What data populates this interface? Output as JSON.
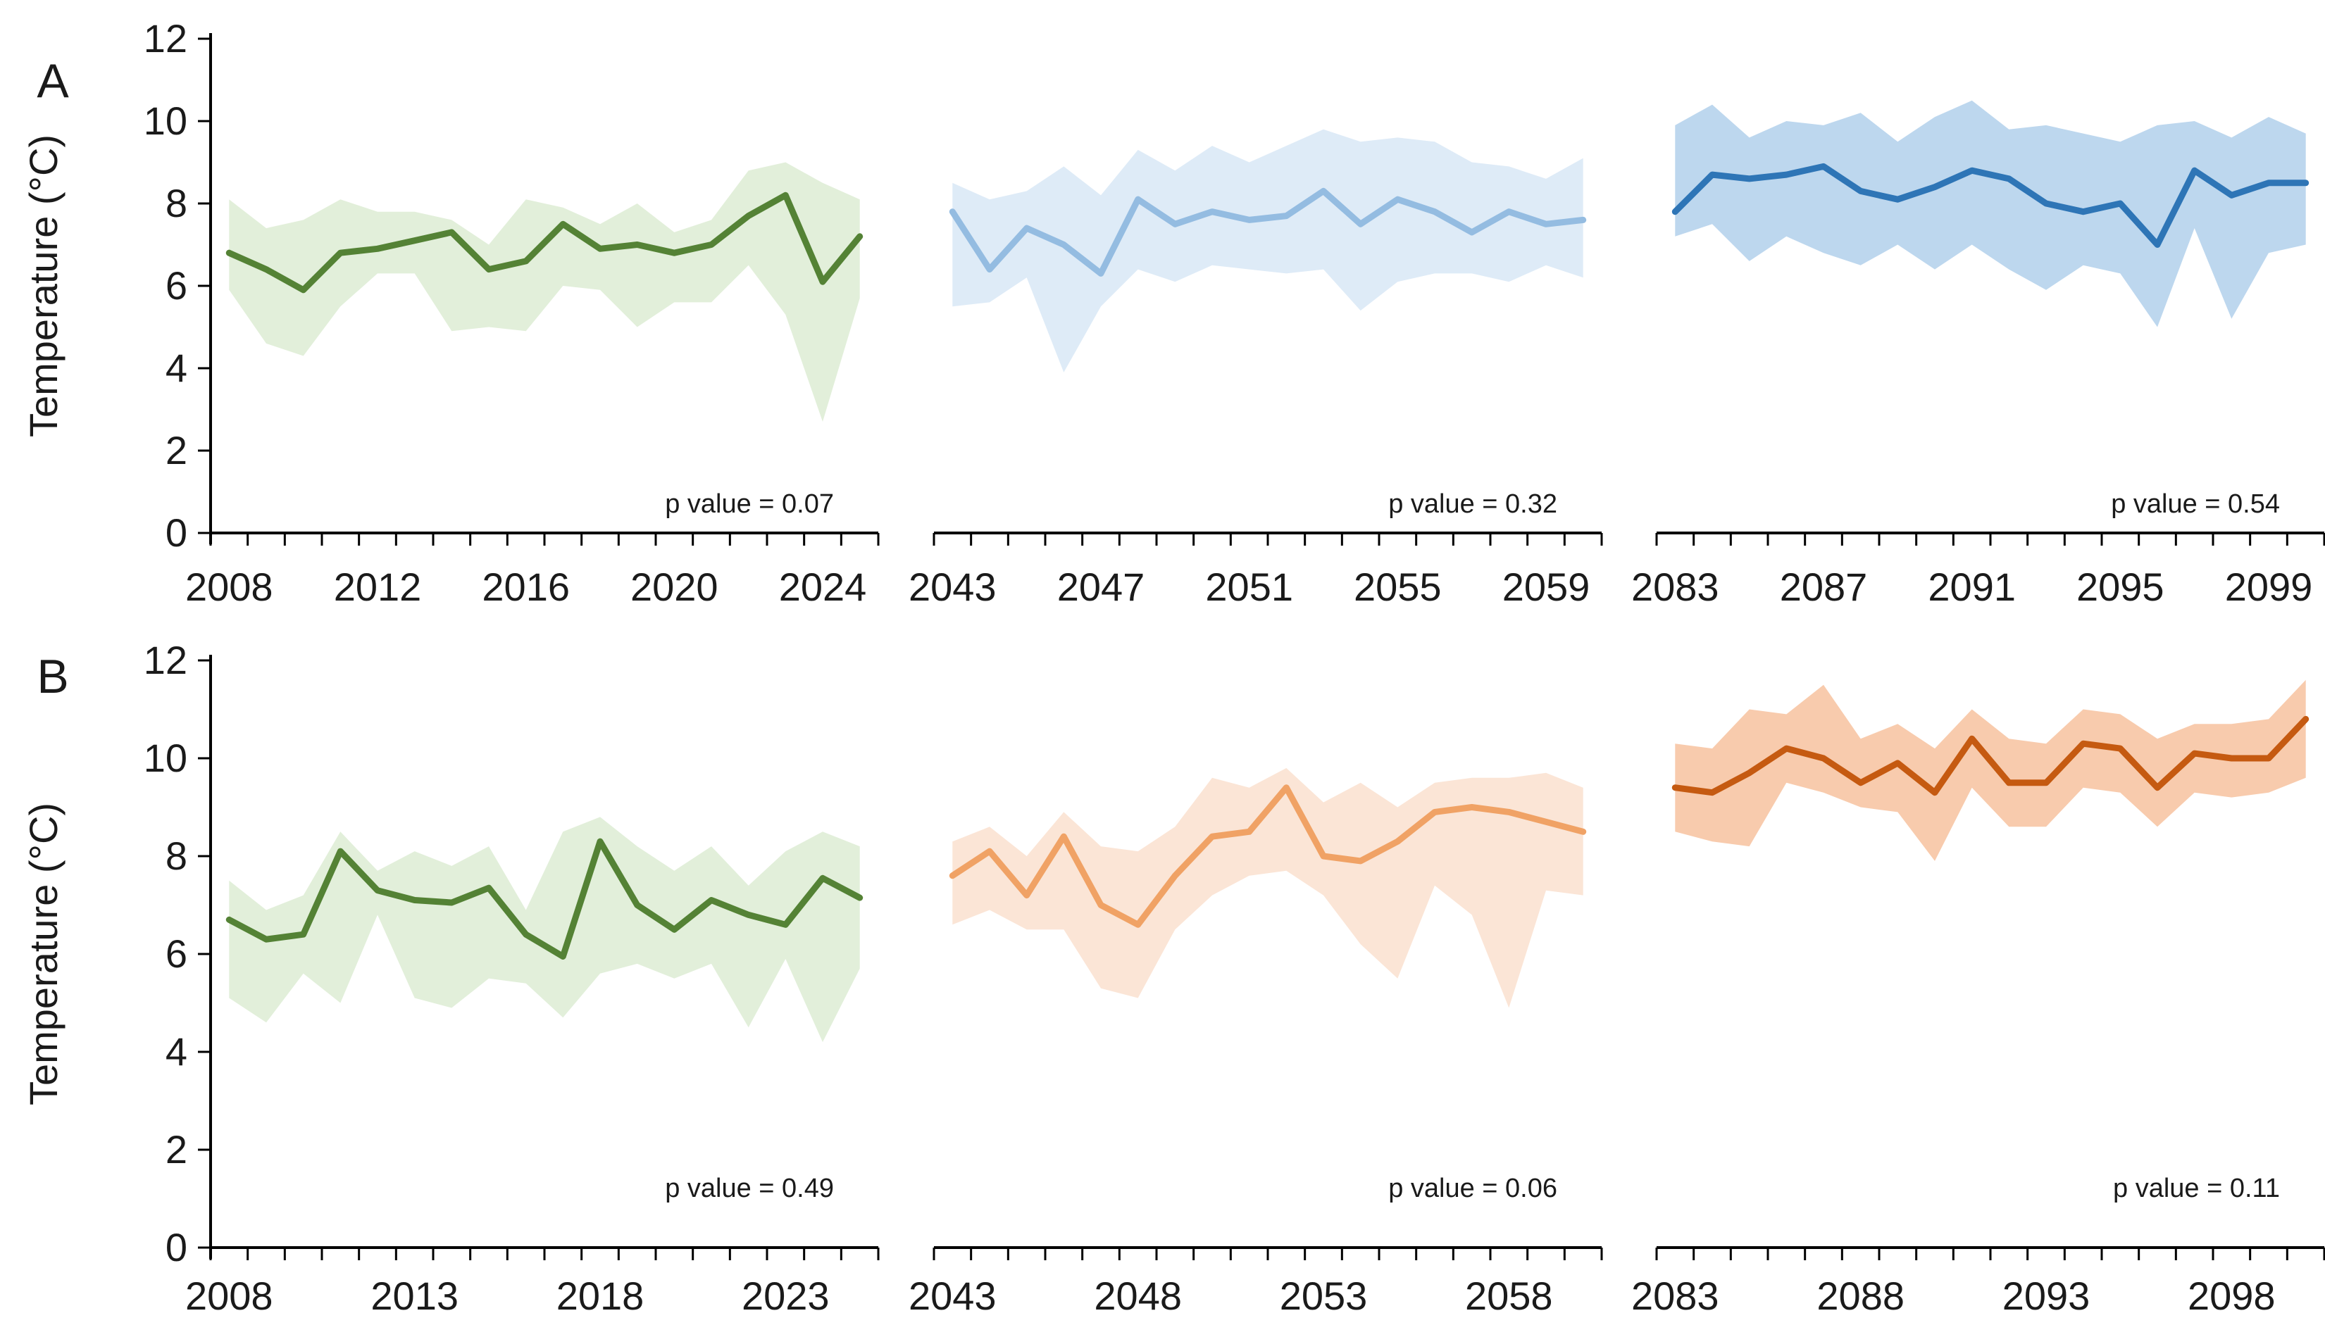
{
  "figure": {
    "row_labels": [
      "A",
      "B"
    ],
    "y_axis_label": "Temperature (°C)",
    "y_ticks": [
      0,
      2,
      4,
      6,
      8,
      10,
      12
    ],
    "y_range": [
      0,
      12
    ],
    "background_color": "#ffffff",
    "axis_color": "#000000"
  },
  "chart_data": [
    {
      "id": "a1",
      "type": "line",
      "row": "A",
      "col": 0,
      "title": "",
      "ylabel": "Temperature (°C)",
      "ylim": [
        0,
        12
      ],
      "x": [
        2008,
        2009,
        2010,
        2011,
        2012,
        2013,
        2014,
        2015,
        2016,
        2017,
        2018,
        2019,
        2020,
        2021,
        2022,
        2023,
        2024,
        2025
      ],
      "x_tick_labels": [
        "2008",
        "2012",
        "2016",
        "2020",
        "2024"
      ],
      "x_label_step": 4,
      "values": [
        6.8,
        6.4,
        5.9,
        6.8,
        6.9,
        7.1,
        7.3,
        6.4,
        6.6,
        7.5,
        6.9,
        7.0,
        6.8,
        7.0,
        7.7,
        8.2,
        6.1,
        7.2
      ],
      "band_upper": [
        8.1,
        7.4,
        7.6,
        8.1,
        7.8,
        7.8,
        7.6,
        7.0,
        8.1,
        7.9,
        7.5,
        8.0,
        7.3,
        7.6,
        8.8,
        9.0,
        8.5,
        8.1
      ],
      "band_lower": [
        5.9,
        4.6,
        4.3,
        5.5,
        6.3,
        6.3,
        4.9,
        5.0,
        4.9,
        6.0,
        5.9,
        5.0,
        5.6,
        5.6,
        6.5,
        5.3,
        2.7,
        5.7
      ],
      "p_label": "p value = 0.07",
      "line_color": "#548235",
      "band_color": "#e2efda"
    },
    {
      "id": "a2",
      "type": "line",
      "row": "A",
      "col": 1,
      "title": "",
      "ylabel": "Temperature (°C)",
      "ylim": [
        0,
        12
      ],
      "x": [
        2043,
        2044,
        2045,
        2046,
        2047,
        2048,
        2049,
        2050,
        2051,
        2052,
        2053,
        2054,
        2055,
        2056,
        2057,
        2058,
        2059,
        2060
      ],
      "x_tick_labels": [
        "2043",
        "2047",
        "2051",
        "2055",
        "2059"
      ],
      "x_label_step": 4,
      "values": [
        7.8,
        6.4,
        7.4,
        7.0,
        6.3,
        8.1,
        7.5,
        7.8,
        7.6,
        7.7,
        8.3,
        7.5,
        8.1,
        7.8,
        7.3,
        7.8,
        7.5,
        7.6
      ],
      "band_upper": [
        8.5,
        8.1,
        8.3,
        8.9,
        8.2,
        9.3,
        8.8,
        9.4,
        9.0,
        9.4,
        9.8,
        9.5,
        9.6,
        9.5,
        9.0,
        8.9,
        8.6,
        9.1
      ],
      "band_lower": [
        5.5,
        5.6,
        6.2,
        3.9,
        5.5,
        6.4,
        6.1,
        6.5,
        6.4,
        6.3,
        6.4,
        5.4,
        6.1,
        6.3,
        6.3,
        6.1,
        6.5,
        6.2
      ],
      "p_label": "p value = 0.32",
      "line_color": "#94bce1",
      "band_color": "#deebf7"
    },
    {
      "id": "a3",
      "type": "line",
      "row": "A",
      "col": 2,
      "title": "",
      "ylabel": "Temperature (°C)",
      "ylim": [
        0,
        12
      ],
      "x": [
        2083,
        2084,
        2085,
        2086,
        2087,
        2088,
        2089,
        2090,
        2091,
        2092,
        2093,
        2094,
        2095,
        2096,
        2097,
        2098,
        2099,
        2100
      ],
      "x_tick_labels": [
        "2083",
        "2087",
        "2091",
        "2095",
        "2099"
      ],
      "x_label_step": 4,
      "values": [
        7.8,
        8.7,
        8.6,
        8.7,
        8.9,
        8.3,
        8.1,
        8.4,
        8.8,
        8.6,
        8.0,
        7.8,
        8.0,
        7.0,
        8.8,
        8.2,
        8.5,
        8.5
      ],
      "band_upper": [
        9.9,
        10.4,
        9.6,
        10.0,
        9.9,
        10.2,
        9.5,
        10.1,
        10.5,
        9.8,
        9.9,
        9.7,
        9.5,
        9.9,
        10.0,
        9.6,
        10.1,
        9.7
      ],
      "band_lower": [
        7.2,
        7.5,
        6.6,
        7.2,
        6.8,
        6.5,
        7.0,
        6.4,
        7.0,
        6.4,
        5.9,
        6.5,
        6.3,
        5.0,
        7.4,
        5.2,
        6.8,
        7.0
      ],
      "p_label": "p value = 0.54",
      "line_color": "#2e75b6",
      "band_color": "#bdd7ee"
    },
    {
      "id": "b1",
      "type": "line",
      "row": "B",
      "col": 0,
      "title": "",
      "ylabel": "Temperature (°C)",
      "ylim": [
        0,
        12
      ],
      "x": [
        2008,
        2009,
        2010,
        2011,
        2012,
        2013,
        2014,
        2015,
        2016,
        2017,
        2018,
        2019,
        2020,
        2021,
        2022,
        2023,
        2024,
        2025
      ],
      "x_tick_labels": [
        "2008",
        "2013",
        "2018",
        "2023"
      ],
      "x_label_step": 5,
      "values": [
        6.7,
        6.3,
        6.4,
        8.1,
        7.3,
        7.1,
        7.05,
        7.35,
        6.4,
        5.95,
        8.3,
        7.0,
        6.5,
        7.1,
        6.8,
        6.6,
        7.55,
        7.15
      ],
      "band_upper": [
        7.5,
        6.9,
        7.2,
        8.5,
        7.7,
        8.1,
        7.8,
        8.2,
        6.9,
        8.5,
        8.8,
        8.2,
        7.7,
        8.2,
        7.4,
        8.1,
        8.5,
        8.2
      ],
      "band_lower": [
        5.1,
        4.6,
        5.6,
        5.0,
        6.8,
        5.1,
        4.9,
        5.5,
        5.4,
        4.7,
        5.6,
        5.8,
        5.5,
        5.8,
        4.5,
        5.9,
        4.2,
        5.7
      ],
      "p_label": "p value = 0.49",
      "line_color": "#548235",
      "band_color": "#e2efda"
    },
    {
      "id": "b2",
      "type": "line",
      "row": "B",
      "col": 1,
      "title": "",
      "ylabel": "Temperature (°C)",
      "ylim": [
        0,
        12
      ],
      "x": [
        2043,
        2044,
        2045,
        2046,
        2047,
        2048,
        2049,
        2050,
        2051,
        2052,
        2053,
        2054,
        2055,
        2056,
        2057,
        2058,
        2059,
        2060
      ],
      "x_tick_labels": [
        "2043",
        "2048",
        "2053",
        "2058"
      ],
      "x_label_step": 5,
      "values": [
        7.6,
        8.1,
        7.2,
        8.4,
        7.0,
        6.6,
        7.6,
        8.4,
        8.5,
        9.4,
        8.0,
        7.9,
        8.3,
        8.9,
        9.0,
        8.9,
        8.7,
        8.5
      ],
      "band_upper": [
        8.3,
        8.6,
        8.0,
        8.9,
        8.2,
        8.1,
        8.6,
        9.6,
        9.4,
        9.8,
        9.1,
        9.5,
        9.0,
        9.5,
        9.6,
        9.6,
        9.7,
        9.4
      ],
      "band_lower": [
        6.6,
        6.9,
        6.5,
        6.5,
        5.3,
        5.1,
        6.5,
        7.2,
        7.6,
        7.7,
        7.2,
        6.2,
        5.5,
        7.4,
        6.8,
        4.9,
        7.3,
        7.2
      ],
      "p_label": "p value = 0.06",
      "line_color": "#f0a265",
      "band_color": "#fbe5d6"
    },
    {
      "id": "b3",
      "type": "line",
      "row": "B",
      "col": 2,
      "title": "",
      "ylabel": "Temperature (°C)",
      "ylim": [
        0,
        12
      ],
      "x": [
        2083,
        2084,
        2085,
        2086,
        2087,
        2088,
        2089,
        2090,
        2091,
        2092,
        2093,
        2094,
        2095,
        2096,
        2097,
        2098,
        2099,
        2100
      ],
      "x_tick_labels": [
        "2083",
        "2088",
        "2093",
        "2098"
      ],
      "x_label_step": 5,
      "values": [
        9.4,
        9.3,
        9.7,
        10.2,
        10.0,
        9.5,
        9.9,
        9.3,
        10.4,
        9.5,
        9.5,
        10.3,
        10.2,
        9.4,
        10.1,
        10.0,
        10.0,
        10.8
      ],
      "band_upper": [
        10.3,
        10.2,
        11.0,
        10.9,
        11.5,
        10.4,
        10.7,
        10.2,
        11.0,
        10.4,
        10.3,
        11.0,
        10.9,
        10.4,
        10.7,
        10.7,
        10.8,
        11.6
      ],
      "band_lower": [
        8.5,
        8.3,
        8.2,
        9.5,
        9.3,
        9.0,
        8.9,
        7.9,
        9.4,
        8.6,
        8.6,
        9.4,
        9.3,
        8.6,
        9.3,
        9.2,
        9.3,
        9.6
      ],
      "p_label": "p value = 0.11",
      "line_color": "#c55a11",
      "band_color": "#f8cbad"
    }
  ]
}
